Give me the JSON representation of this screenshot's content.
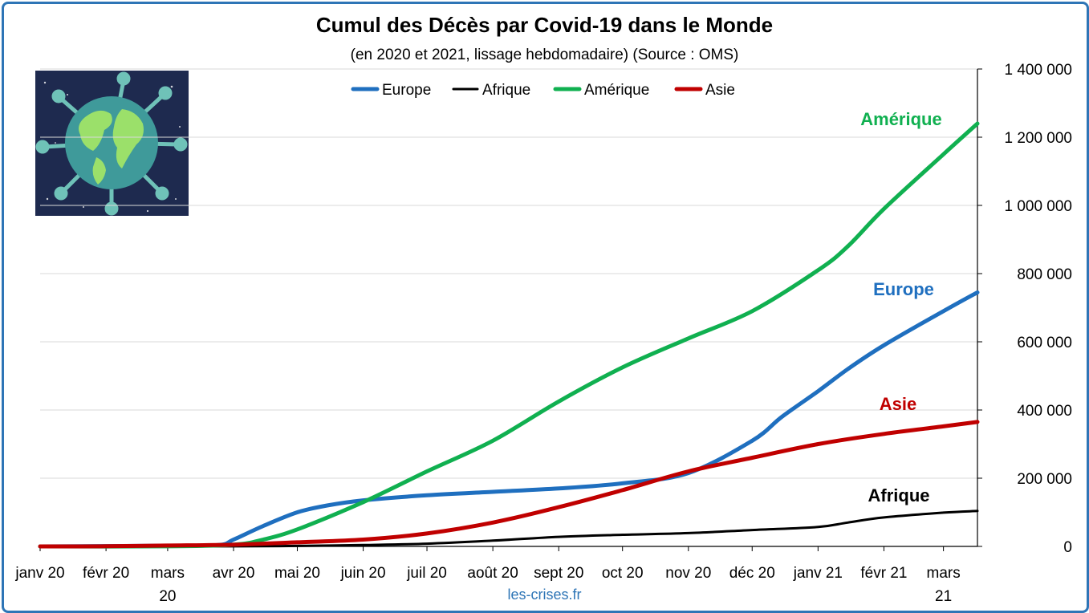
{
  "title": "Cumul des Décès par Covid-19 dans le Monde",
  "subtitle": "(en 2020 et 2021, lissage hebdomadaire) (Source : OMS)",
  "source_link": "les-crises.fr",
  "colors": {
    "europe": "#1f6fbf",
    "afrique": "#000000",
    "amerique": "#10b050",
    "asie": "#c00000",
    "frame": "#2e75b6",
    "grid": "#d9d9d9"
  },
  "chart_data": {
    "type": "line",
    "title": "Cumul des Décès par Covid-19 dans le Monde",
    "subtitle": "(en 2020 et 2021, lissage hebdomadaire) (Source : OMS)",
    "x_tick_labels": [
      "janv 20",
      "févr 20",
      "mars 20",
      "avr 20",
      "mai 20",
      "juin 20",
      "juil 20",
      "août 20",
      "sept 20",
      "oct 20",
      "nov 20",
      "déc 20",
      "janv 21",
      "févr 21",
      "mars 21"
    ],
    "y_tick_labels": [
      "0",
      "200 000",
      "400 000",
      "600 000",
      "800 000",
      "1 000 000",
      "1 200 000",
      "1 400 000"
    ],
    "ylim": [
      0,
      1400000
    ],
    "y_axis_side": "right",
    "grid": true,
    "legend_position": "top",
    "series": [
      {
        "name": "Europe",
        "color": "#1f6fbf",
        "end_label": "Europe",
        "x": [
          "2020-01-01",
          "2020-03-01",
          "2020-03-25",
          "2020-04-01",
          "2020-04-15",
          "2020-05-01",
          "2020-05-15",
          "2020-06-01",
          "2020-07-01",
          "2020-08-01",
          "2020-09-01",
          "2020-10-01",
          "2020-11-01",
          "2020-12-01",
          "2020-12-15",
          "2021-01-01",
          "2021-01-15",
          "2021-02-01",
          "2021-03-01",
          "2021-03-17"
        ],
        "values": [
          0,
          2000,
          4000,
          20000,
          60000,
          100000,
          120000,
          135000,
          150000,
          160000,
          170000,
          185000,
          215000,
          310000,
          380000,
          455000,
          520000,
          590000,
          690000,
          745000
        ]
      },
      {
        "name": "Afrique",
        "color": "#000000",
        "end_label": "Afrique",
        "x": [
          "2020-01-01",
          "2020-04-01",
          "2020-05-01",
          "2020-06-01",
          "2020-07-01",
          "2020-08-01",
          "2020-09-01",
          "2020-10-01",
          "2020-11-01",
          "2020-12-01",
          "2021-01-01",
          "2021-01-15",
          "2021-02-01",
          "2021-03-01",
          "2021-03-17"
        ],
        "values": [
          0,
          300,
          1500,
          4000,
          8000,
          17000,
          28000,
          34000,
          39000,
          48000,
          57000,
          70000,
          85000,
          99000,
          104000
        ]
      },
      {
        "name": "Amérique",
        "color": "#10b050",
        "end_label": "Amérique",
        "x": [
          "2020-01-01",
          "2020-03-01",
          "2020-04-01",
          "2020-04-15",
          "2020-05-01",
          "2020-06-01",
          "2020-07-01",
          "2020-08-01",
          "2020-09-01",
          "2020-10-01",
          "2020-11-01",
          "2020-12-01",
          "2021-01-01",
          "2021-01-15",
          "2021-02-01",
          "2021-03-01",
          "2021-03-17"
        ],
        "values": [
          0,
          200,
          5000,
          20000,
          50000,
          130000,
          220000,
          310000,
          425000,
          525000,
          610000,
          690000,
          810000,
          880000,
          990000,
          1150000,
          1240000
        ]
      },
      {
        "name": "Asie",
        "color": "#c00000",
        "end_label": "Asie",
        "x": [
          "2020-01-01",
          "2020-02-01",
          "2020-03-01",
          "2020-04-01",
          "2020-05-01",
          "2020-06-01",
          "2020-07-01",
          "2020-08-01",
          "2020-09-01",
          "2020-10-01",
          "2020-11-01",
          "2020-12-01",
          "2021-01-01",
          "2021-02-01",
          "2021-03-01",
          "2021-03-17"
        ],
        "values": [
          0,
          500,
          2500,
          5000,
          12000,
          20000,
          38000,
          70000,
          115000,
          165000,
          220000,
          260000,
          300000,
          330000,
          352000,
          365000
        ]
      }
    ]
  }
}
